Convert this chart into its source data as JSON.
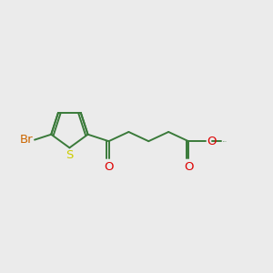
{
  "background_color": "#ebebeb",
  "bond_color": "#3a7a3a",
  "br_color": "#cc6600",
  "s_color": "#cccc00",
  "o_color": "#dd0000",
  "methyl_color": "#3a7a3a",
  "line_width": 1.4,
  "font_size": 9.5,
  "fig_size": [
    3.0,
    3.0
  ],
  "dpi": 100,
  "xlim": [
    0,
    10
  ],
  "ylim": [
    2,
    8
  ]
}
